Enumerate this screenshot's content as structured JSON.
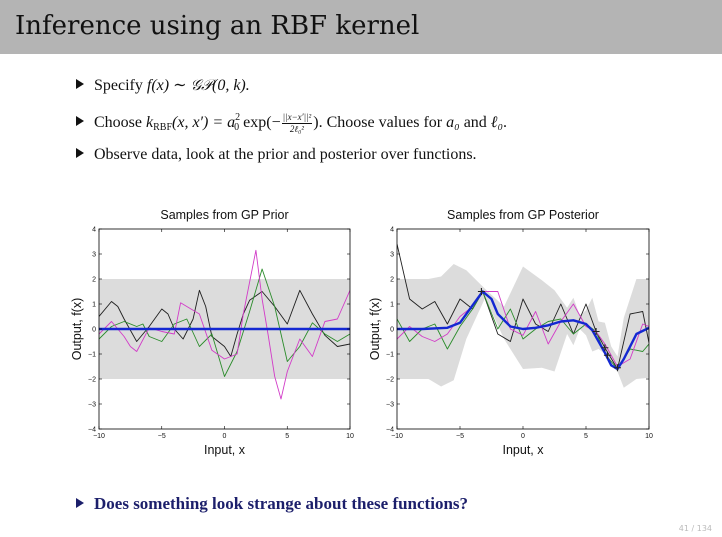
{
  "slide": {
    "title": "Inference using an RBF kernel",
    "page_number": "41 / 134",
    "bullets": {
      "b1": {
        "text1": "Specify ",
        "fx": "f(x)",
        "sim": " ∼ ",
        "gp": "𝒢𝒫",
        "args": "(0, k)."
      },
      "b2": {
        "text1": "Choose ",
        "k": "k",
        "k_sub": "RBF",
        "args": "(x, x′) = ",
        "a": "a",
        "a_sub": "0",
        "a_sup": "2",
        "exp": " exp(−",
        "num": "||x−x′||²",
        "den": "2ℓ₀²",
        "close": "). Choose values for ",
        "a0": "a₀",
        "and": " and ",
        "l0": "ℓ₀",
        "end": "."
      },
      "b3": "Observe data, look at the prior and posterior over functions."
    },
    "question": "Does something look strange about these functions?"
  },
  "colors": {
    "prior_band": "#dcdcdc",
    "mean": "#1428d2",
    "black": "#202020",
    "green": "#2b8c2b",
    "magenta": "#d23cc8",
    "points": "#222222"
  },
  "chart_data": [
    {
      "type": "line",
      "title": "Samples from GP Prior",
      "xlabel": "Input, x",
      "ylabel": "Output, f(x)",
      "xlim": [
        -10,
        10
      ],
      "ylim": [
        -4,
        4
      ],
      "xticks": [
        -10,
        -5,
        0,
        5,
        10
      ],
      "xtick_labels": [
        "−10",
        "−5",
        "0",
        "5",
        "10"
      ],
      "yticks": [
        -4,
        -3,
        -2,
        -1,
        0,
        1,
        2,
        3,
        4
      ],
      "ytick_labels": [
        "−4",
        "−3",
        "−2",
        "−1",
        "0",
        "1",
        "2",
        "3",
        "4"
      ],
      "band": {
        "x": [
          -10,
          10
        ],
        "lower": [
          -2,
          -2
        ],
        "upper": [
          2,
          2
        ]
      },
      "mean": {
        "x": [
          -10,
          10
        ],
        "y": [
          0,
          0
        ]
      },
      "series": [
        {
          "color": "black",
          "x": [
            -10,
            -9,
            -8.5,
            -8,
            -7,
            -6,
            -5,
            -4.5,
            -4,
            -3.3,
            -2.5,
            -2,
            -1.5,
            -1,
            0,
            0.5,
            1,
            1.5,
            2,
            3,
            4,
            5,
            6,
            7,
            8,
            9,
            10
          ],
          "y": [
            0.5,
            1.1,
            0.9,
            0.4,
            -0.5,
            0.1,
            0.8,
            0.6,
            0,
            -0.4,
            0.4,
            1.55,
            0.9,
            -0.3,
            -0.7,
            -1.1,
            -0.2,
            0.6,
            1.15,
            1.5,
            0.9,
            0.2,
            1.55,
            0.6,
            -0.25,
            -0.7,
            -0.6
          ]
        },
        {
          "color": "green",
          "x": [
            -10,
            -9,
            -8,
            -7,
            -6.5,
            -6,
            -5,
            -4,
            -3,
            -2,
            -1,
            0,
            1,
            2,
            3,
            4,
            5,
            6,
            7,
            8,
            9,
            10
          ],
          "y": [
            -0.4,
            0.1,
            0.3,
            0.1,
            0.2,
            -0.3,
            -0.5,
            0.2,
            0.4,
            -0.7,
            -0.2,
            -1.9,
            -0.9,
            0.7,
            2.4,
            0.9,
            -1.3,
            -0.7,
            0.25,
            -0.2,
            -0.5,
            -0.2
          ]
        },
        {
          "color": "magenta",
          "x": [
            -10,
            -9,
            -8,
            -7.5,
            -7,
            -6,
            -5,
            -4,
            -3.5,
            -3,
            -2,
            -1,
            0,
            1,
            1.5,
            2.5,
            3,
            3.5,
            4,
            4.5,
            5,
            6,
            7,
            8,
            9,
            10
          ],
          "y": [
            -0.2,
            0.3,
            -0.3,
            -0.7,
            -0.9,
            0.05,
            -0.1,
            -0.2,
            1.05,
            0.9,
            0.6,
            -0.85,
            -1.2,
            -1.0,
            0.6,
            3.15,
            1.2,
            -0.3,
            -1.9,
            -2.8,
            -1.7,
            -0.4,
            -1.1,
            0.3,
            0.4,
            1.55
          ]
        }
      ]
    },
    {
      "type": "line",
      "title": "Samples from GP Posterior",
      "xlabel": "Input, x",
      "ylabel": "Output, f(x)",
      "xlim": [
        -10,
        10
      ],
      "ylim": [
        -4,
        4
      ],
      "xticks": [
        -10,
        -5,
        0,
        5,
        10
      ],
      "xtick_labels": [
        "−10",
        "−5",
        "0",
        "5",
        "10"
      ],
      "yticks": [
        -4,
        -3,
        -2,
        -1,
        0,
        1,
        2,
        3,
        4
      ],
      "ytick_labels": [
        "−4",
        "−3",
        "−2",
        "−1",
        "0",
        "1",
        "2",
        "3",
        "4"
      ],
      "band": {
        "x": [
          -10,
          -7.5,
          -6.5,
          -5.5,
          -4.5,
          -3,
          -1.5,
          0,
          1.5,
          2.5,
          3.5,
          4,
          4.5,
          5,
          5.5,
          6,
          6.5,
          7,
          7.5,
          8,
          9,
          10
        ],
        "lower": [
          -2,
          -2,
          -2.3,
          -2.05,
          -0.4,
          1.25,
          -0.4,
          -1.6,
          -1.55,
          -1.7,
          -0.2,
          -0.65,
          0.0,
          -0.25,
          -0.9,
          -0.8,
          -1.0,
          -1.45,
          -1.7,
          -2.35,
          -2.0,
          -1.95
        ],
        "upper": [
          2,
          2,
          2.1,
          2.6,
          2.35,
          1.6,
          0.9,
          2.5,
          1.95,
          1.55,
          0.85,
          1.25,
          0.55,
          0.75,
          1.25,
          0.3,
          0.25,
          -0.7,
          -1.1,
          0.45,
          2.0,
          2.0
        ]
      },
      "mean": {
        "x": [
          -10,
          -8,
          -6,
          -5,
          -4,
          -3.2,
          -2.5,
          -2,
          -1,
          0,
          1,
          2,
          3,
          4,
          5,
          5.5,
          6,
          6.5,
          7,
          7.5,
          8,
          9,
          10
        ],
        "y": [
          0,
          0,
          0.05,
          0.25,
          0.95,
          1.5,
          1.2,
          0.6,
          0.1,
          0.0,
          0.05,
          0.15,
          0.3,
          0.35,
          0.2,
          -0.05,
          -0.5,
          -0.95,
          -1.45,
          -1.6,
          -1.2,
          -0.2,
          0.05
        ]
      },
      "points": [
        {
          "x": -3.3,
          "y": 1.5
        },
        {
          "x": 5.8,
          "y": -0.1
        },
        {
          "x": 6.5,
          "y": -0.75
        },
        {
          "x": 6.7,
          "y": -1.05
        },
        {
          "x": 7.5,
          "y": -1.55
        }
      ],
      "series": [
        {
          "color": "black",
          "x": [
            -10,
            -9,
            -8,
            -7,
            -6,
            -5,
            -4,
            -3.2,
            -2,
            -1,
            0,
            1,
            2,
            3,
            4,
            5,
            5.8,
            6.5,
            7.5,
            8.5,
            9.5,
            10
          ],
          "y": [
            3.4,
            1.2,
            0.8,
            1.1,
            0.2,
            1.2,
            0.8,
            1.5,
            -0.2,
            -0.5,
            1.2,
            0.2,
            -0.1,
            1.0,
            -0.2,
            1.0,
            -0.1,
            -0.75,
            -1.6,
            0.6,
            0.7,
            -0.55
          ]
        },
        {
          "color": "green",
          "x": [
            -10,
            -9,
            -8,
            -7,
            -6,
            -5,
            -4,
            -3.2,
            -2,
            -1,
            0,
            1,
            2,
            3,
            4,
            5,
            5.8,
            6.5,
            7.5,
            8.5,
            9.5,
            10
          ],
          "y": [
            0.4,
            -0.5,
            0.0,
            0.2,
            -0.8,
            0.1,
            0.8,
            1.5,
            0.0,
            0.8,
            -0.4,
            0.0,
            0.3,
            0.4,
            -0.2,
            0.2,
            -0.1,
            -1.0,
            -1.6,
            -0.8,
            -0.9,
            -0.6
          ]
        },
        {
          "color": "magenta",
          "x": [
            -10,
            -9,
            -8,
            -7,
            -6,
            -5,
            -4,
            -3.2,
            -2,
            -1,
            0,
            1,
            2,
            3,
            4,
            5,
            5.8,
            6.5,
            7.5,
            8.5,
            9.5,
            10
          ],
          "y": [
            -0.4,
            0.1,
            -0.3,
            -0.5,
            -0.2,
            0.5,
            0.9,
            1.5,
            1.5,
            0.0,
            -0.25,
            0.7,
            -0.6,
            0.3,
            1.0,
            0.1,
            -0.1,
            -0.6,
            -1.5,
            -1.2,
            0.2,
            0.1
          ]
        }
      ]
    }
  ]
}
